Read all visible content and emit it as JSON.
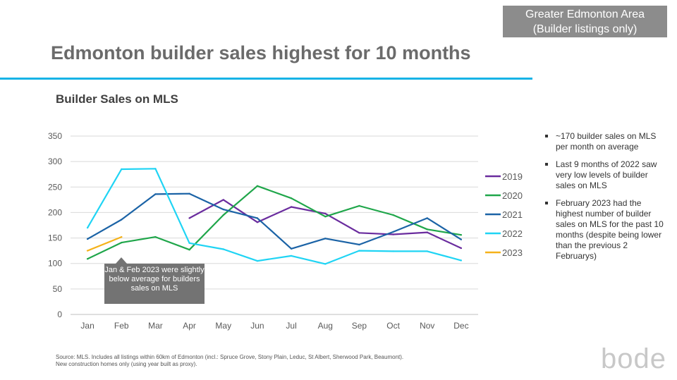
{
  "header": {
    "region_tag_line1": "Greater Edmonton Area",
    "region_tag_line2": "(Builder listings only)",
    "title": "Edmonton builder sales highest for 10 months",
    "accent_color": "#17b3e6"
  },
  "chart_data": {
    "type": "line",
    "title": "Builder Sales on MLS",
    "xlabel": "",
    "ylabel": "",
    "categories": [
      "Jan",
      "Feb",
      "Mar",
      "Apr",
      "May",
      "Jun",
      "Jul",
      "Aug",
      "Sep",
      "Oct",
      "Nov",
      "Dec"
    ],
    "ylim": [
      0,
      350
    ],
    "yticks": [
      0,
      50,
      100,
      150,
      200,
      250,
      300,
      350
    ],
    "grid": true,
    "legend_position": "right",
    "series": [
      {
        "name": "2019",
        "color": "#6a2c9e",
        "values": [
          null,
          null,
          null,
          189,
          225,
          181,
          211,
          198,
          160,
          157,
          161,
          130
        ]
      },
      {
        "name": "2020",
        "color": "#1fa64a",
        "values": [
          109,
          141,
          152,
          127,
          195,
          252,
          228,
          192,
          213,
          195,
          167,
          156
        ]
      },
      {
        "name": "2021",
        "color": "#1b63a6",
        "values": [
          148,
          186,
          236,
          237,
          206,
          189,
          129,
          149,
          137,
          162,
          189,
          147
        ]
      },
      {
        "name": "2022",
        "color": "#1fd4f4",
        "values": [
          170,
          285,
          286,
          140,
          128,
          105,
          115,
          99,
          125,
          124,
          124,
          106
        ]
      },
      {
        "name": "2023",
        "color": "#f5b21a",
        "values": [
          125,
          152,
          null,
          null,
          null,
          null,
          null,
          null,
          null,
          null,
          null,
          null
        ]
      }
    ],
    "annotation": "Jan & Feb 2023 were slightly below average for builders sales on MLS"
  },
  "notes": [
    "~170 builder sales on MLS per month on average",
    "Last 9 months of 2022 saw very low levels of builder sales on MLS",
    "February 2023 had the highest number of builder sales on MLS for the past 10 months (despite being lower than the previous 2 Februarys)"
  ],
  "footer": {
    "source_line1": "Source: MLS. Includes all listings within 60km of Edmonton (incl.: Spruce Grove, Stony Plain, Leduc, St Albert, Sherwood Park, Beaumont).",
    "source_line2": "New construction homes only (using year built as proxy).",
    "logo": "bode"
  }
}
